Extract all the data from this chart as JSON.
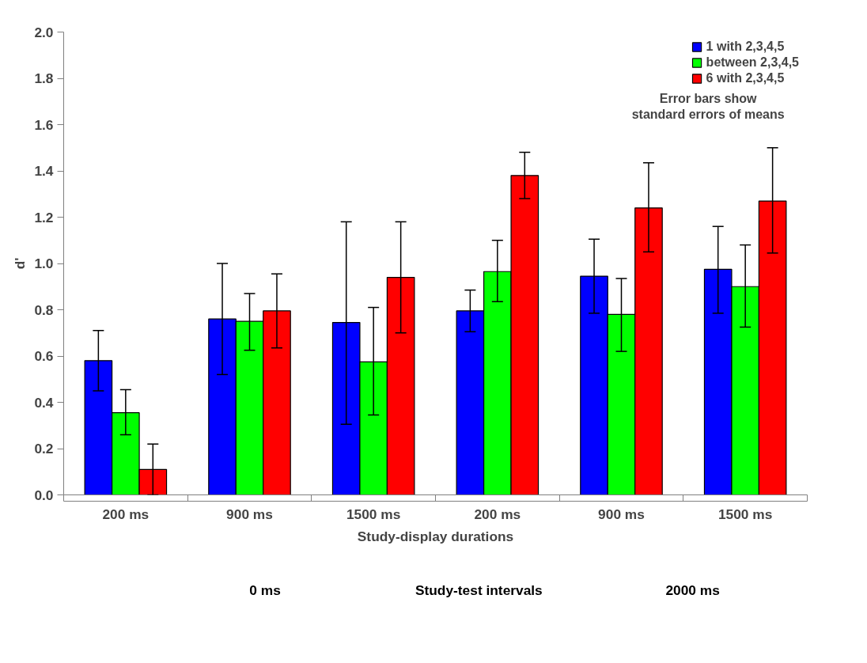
{
  "chart_data": {
    "type": "bar",
    "ylabel": "d'",
    "xlabel": "Study-display durations",
    "categories": [
      "200 ms",
      "900 ms",
      "1500 ms",
      "200 ms",
      "900 ms",
      "1500 ms"
    ],
    "series": [
      {
        "name": "1 with 2,3,4,5",
        "color": "#0000ff",
        "values": [
          0.58,
          0.76,
          0.745,
          0.795,
          0.945,
          0.975
        ],
        "errors": [
          [
            0.45,
            0.71
          ],
          [
            0.52,
            1.0
          ],
          [
            0.305,
            1.18
          ],
          [
            0.705,
            0.885
          ],
          [
            0.785,
            1.105
          ],
          [
            0.785,
            1.16
          ]
        ]
      },
      {
        "name": "between 2,3,4,5",
        "color": "#00ff00",
        "values": [
          0.355,
          0.75,
          0.575,
          0.965,
          0.78,
          0.9
        ],
        "errors": [
          [
            0.26,
            0.455
          ],
          [
            0.625,
            0.87
          ],
          [
            0.345,
            0.81
          ],
          [
            0.835,
            1.1
          ],
          [
            0.62,
            0.935
          ],
          [
            0.725,
            1.08
          ]
        ]
      },
      {
        "name": "6 with 2,3,4,5",
        "color": "#ff0000",
        "values": [
          0.11,
          0.795,
          0.94,
          1.38,
          1.24,
          1.27
        ],
        "errors": [
          [
            0.0,
            0.22
          ],
          [
            0.635,
            0.955
          ],
          [
            0.7,
            1.18
          ],
          [
            1.28,
            1.48
          ],
          [
            1.05,
            1.435
          ],
          [
            1.045,
            1.5
          ]
        ]
      }
    ],
    "ylim": [
      0,
      2
    ],
    "yticks": [
      {
        "value": 0,
        "label": "0.0"
      },
      {
        "value": 0.2,
        "label": "0.2"
      },
      {
        "value": 0.4,
        "label": "0.4"
      },
      {
        "value": 0.6,
        "label": "0.6"
      },
      {
        "value": 0.8,
        "label": "0.8"
      },
      {
        "value": 1,
        "label": "1.0"
      },
      {
        "value": 1.2,
        "label": "1.2"
      },
      {
        "value": 1.4,
        "label": "1.4"
      },
      {
        "value": 1.6,
        "label": "1.6"
      },
      {
        "value": 1.8,
        "label": "1.8"
      },
      {
        "value": 2,
        "label": "2.0"
      }
    ],
    "annotations": [
      "Error bars show\nstandard errors of means",
      "0 ms",
      "Study-test intervals",
      "2000 ms"
    ],
    "legend": "top right",
    "grid": false
  }
}
